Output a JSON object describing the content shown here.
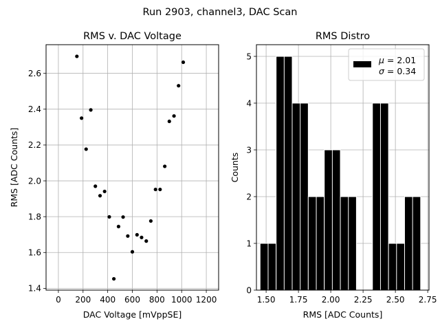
{
  "figure": {
    "suptitle": "Run 2903, channel3, DAC Scan"
  },
  "chart_data": [
    {
      "type": "scatter",
      "title": "RMS v. DAC Voltage",
      "xlabel": "DAC Voltage [mVppSE]",
      "ylabel": "RMS [ADC Counts]",
      "xlim": [
        -100,
        1300
      ],
      "ylim": [
        1.39,
        2.76
      ],
      "xticks": [
        0,
        200,
        400,
        600,
        800,
        1000,
        1200
      ],
      "xtick_labels": [
        "0",
        "200",
        "400",
        "600",
        "800",
        "1000",
        "1200"
      ],
      "yticks": [
        1.4,
        1.6,
        1.8,
        2.0,
        2.2,
        2.4,
        2.6
      ],
      "ytick_labels": [
        "1.4",
        "1.6",
        "1.8",
        "2.0",
        "2.2",
        "2.4",
        "2.6"
      ],
      "grid": true,
      "marker_color": "#000000",
      "points": [
        {
          "x": 150,
          "y": 2.695
        },
        {
          "x": 188,
          "y": 2.35
        },
        {
          "x": 225,
          "y": 2.177
        },
        {
          "x": 263,
          "y": 2.396
        },
        {
          "x": 300,
          "y": 1.97
        },
        {
          "x": 338,
          "y": 1.917
        },
        {
          "x": 375,
          "y": 1.941
        },
        {
          "x": 413,
          "y": 1.799
        },
        {
          "x": 450,
          "y": 1.453
        },
        {
          "x": 488,
          "y": 1.745
        },
        {
          "x": 525,
          "y": 1.798
        },
        {
          "x": 563,
          "y": 1.692
        },
        {
          "x": 600,
          "y": 1.604
        },
        {
          "x": 638,
          "y": 1.699
        },
        {
          "x": 675,
          "y": 1.684
        },
        {
          "x": 713,
          "y": 1.664
        },
        {
          "x": 750,
          "y": 1.776
        },
        {
          "x": 788,
          "y": 1.952
        },
        {
          "x": 825,
          "y": 1.952
        },
        {
          "x": 863,
          "y": 2.081
        },
        {
          "x": 900,
          "y": 2.332
        },
        {
          "x": 938,
          "y": 2.362
        },
        {
          "x": 975,
          "y": 2.531
        },
        {
          "x": 1013,
          "y": 2.662
        }
      ]
    },
    {
      "type": "histogram",
      "title": "RMS Distro",
      "xlabel": "RMS [ADC Counts]",
      "ylabel": "Counts",
      "xlim": [
        1.425,
        2.76
      ],
      "ylim": [
        0,
        5.25
      ],
      "xticks": [
        1.5,
        1.75,
        2.0,
        2.25,
        2.5,
        2.75
      ],
      "xtick_labels": [
        "1.50",
        "1.75",
        "2.00",
        "2.25",
        "2.50",
        "2.75"
      ],
      "yticks": [
        0,
        1,
        2,
        3,
        4,
        5
      ],
      "ytick_labels": [
        "0",
        "1",
        "2",
        "3",
        "4",
        "5"
      ],
      "grid": true,
      "bar_color": "#000000",
      "bar_edge_color": "#ffffff",
      "bin_edges": [
        1.4532,
        1.5774,
        1.7016,
        1.8258,
        1.95,
        2.0742,
        2.1984,
        2.3226,
        2.4468,
        2.571,
        2.6952
      ],
      "half_bin_edges": [
        1.4532,
        1.5153,
        1.5774,
        1.6395,
        1.7016,
        1.7637,
        1.8258,
        1.8879,
        1.95,
        2.0121,
        2.0742,
        2.1363,
        2.1984,
        2.2605,
        2.3226,
        2.3847,
        2.4468,
        2.5089,
        2.571,
        2.6331,
        2.6952
      ],
      "counts": [
        1,
        5,
        4,
        2,
        3,
        2,
        0,
        4,
        1,
        2
      ],
      "legend": {
        "location": "upper right",
        "entries": [
          {
            "label_line1": "μ = 2.01",
            "label_line2": "σ = 0.34"
          }
        ],
        "mu_symbol": "μ",
        "mu_text": " = 2.01",
        "sigma_symbol": "σ",
        "sigma_text": " = 0.34"
      }
    }
  ]
}
